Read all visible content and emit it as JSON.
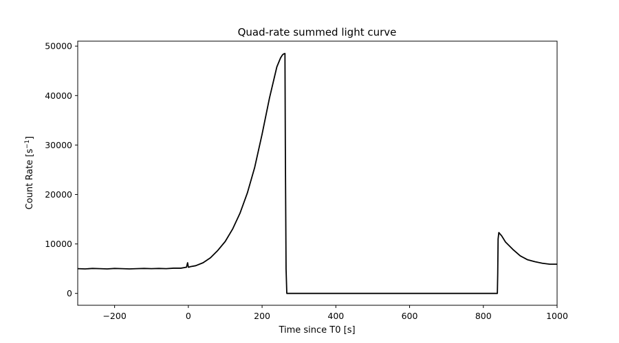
{
  "chart_data": {
    "type": "line",
    "title": "Quad-rate summed light curve",
    "xlabel": "Time since T0 [s]",
    "ylabel_main": "Count Rate [s",
    "ylabel_sup": "−1",
    "ylabel_close": "]",
    "xlim": [
      -300,
      1000
    ],
    "ylim": [
      -2400,
      51000
    ],
    "x_ticks": [
      -200,
      0,
      200,
      400,
      600,
      800,
      1000
    ],
    "x_tick_labels": [
      "−200",
      "0",
      "200",
      "400",
      "600",
      "800",
      "1000"
    ],
    "y_ticks": [
      0,
      10000,
      20000,
      30000,
      40000,
      50000
    ],
    "y_tick_labels": [
      "0",
      "10000",
      "20000",
      "30000",
      "40000",
      "50000"
    ],
    "grid": false,
    "line_color": "#000000",
    "series": [
      {
        "x": [
          -300,
          -280,
          -260,
          -240,
          -220,
          -200,
          -180,
          -160,
          -140,
          -120,
          -100,
          -80,
          -60,
          -40,
          -20,
          -5,
          -2,
          0,
          2,
          5,
          20,
          40,
          60,
          80,
          100,
          120,
          140,
          160,
          180,
          200,
          220,
          240,
          250,
          255,
          258,
          262,
          263,
          265,
          267,
          280,
          400,
          600,
          800,
          838,
          839,
          840,
          842,
          850,
          860,
          880,
          900,
          920,
          940,
          960,
          980,
          1000
        ],
        "y": [
          5000,
          4950,
          5050,
          5000,
          4950,
          5050,
          5000,
          4950,
          5000,
          5050,
          5000,
          5050,
          5000,
          5100,
          5100,
          5300,
          6200,
          5300,
          5300,
          5400,
          5600,
          6200,
          7200,
          8700,
          10500,
          13000,
          16200,
          20300,
          25500,
          32200,
          39500,
          45800,
          47600,
          48200,
          48400,
          48500,
          30000,
          5000,
          0,
          0,
          0,
          0,
          0,
          0,
          4000,
          11000,
          12300,
          11600,
          10400,
          8900,
          7600,
          6800,
          6400,
          6100,
          5900,
          5900
        ]
      }
    ]
  }
}
